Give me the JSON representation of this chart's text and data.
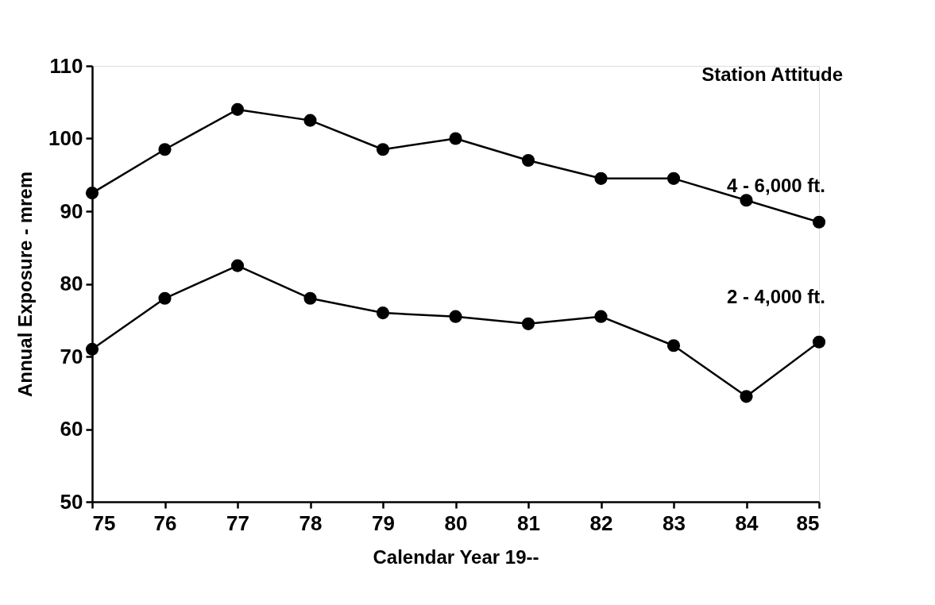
{
  "chart_data": {
    "type": "line",
    "xlabel": "Calendar Year 19--",
    "ylabel": "Annual Exposure - mrem",
    "legend_title": "Station Attitude",
    "x": [
      75,
      76,
      77,
      78,
      79,
      80,
      81,
      82,
      83,
      84,
      85
    ],
    "series": [
      {
        "name": "4 - 6,000 ft.",
        "color": "#000000",
        "values": [
          92.5,
          98.5,
          104,
          102.5,
          98.5,
          100,
          97,
          94.5,
          94.5,
          91.5,
          88.5
        ]
      },
      {
        "name": "2 - 4,000 ft.",
        "color": "#000000",
        "values": [
          71,
          78,
          82.5,
          78,
          76,
          75.5,
          74.5,
          75.5,
          71.5,
          64.5,
          72
        ]
      }
    ],
    "xlim": [
      75,
      85
    ],
    "ylim": [
      50,
      110
    ],
    "xticks": [
      75,
      76,
      77,
      78,
      79,
      80,
      81,
      82,
      83,
      84,
      85
    ],
    "yticks": [
      50,
      60,
      70,
      80,
      90,
      100,
      110
    ],
    "grid": false,
    "marker": "circle",
    "line_style": "solid",
    "legend": "right"
  }
}
